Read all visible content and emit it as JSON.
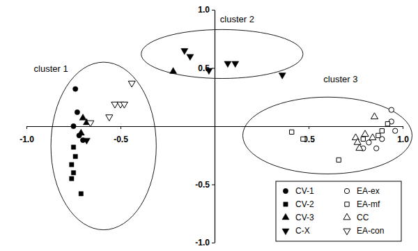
{
  "chart_data": {
    "type": "scatter",
    "xlim": [
      -1,
      1
    ],
    "ylim": [
      -1,
      1
    ],
    "xticks": [
      {
        "value": -1,
        "label": "-1.0"
      },
      -0.5,
      0.5,
      {
        "value": 1,
        "label": "1.0"
      }
    ],
    "yticks": [
      {
        "value": -1,
        "label": "-1.0"
      },
      -0.5,
      0.5,
      {
        "value": 1,
        "label": "1.0"
      }
    ],
    "legend": "lower right",
    "series": [
      {
        "name": "CV-1",
        "color": "#000000",
        "marker": "circle",
        "x": [
          -0.74,
          -0.73,
          -0.75,
          -0.72,
          -0.7
        ],
        "values": [
          0.32,
          0.12,
          0.0,
          -0.08,
          -0.12
        ]
      },
      {
        "name": "CV-2",
        "color": "#000000",
        "marker": "square",
        "x": [
          -0.75,
          -0.74,
          -0.76,
          -0.75,
          -0.76,
          -0.71
        ],
        "values": [
          -0.18,
          -0.26,
          -0.33,
          -0.4,
          -0.45,
          -0.58
        ]
      },
      {
        "name": "CV-3",
        "color": "#000000",
        "marker": "triangle-up",
        "x": [
          -0.7,
          -0.68,
          -0.71,
          -0.22
        ],
        "values": [
          0.07,
          0.03,
          -0.06,
          0.47
        ]
      },
      {
        "name": "C-X",
        "color": "#000000",
        "marker": "triangle-down",
        "x": [
          -0.16,
          -0.13,
          -0.03,
          0.07,
          0.11,
          0.36,
          -0.68
        ],
        "values": [
          0.65,
          0.6,
          0.48,
          0.54,
          0.54,
          0.44,
          -0.12
        ]
      },
      {
        "name": "EA-ex",
        "color": "#000000",
        "marker": "circle-open",
        "x": [
          0.94,
          0.94,
          0.96,
          0.89,
          0.86,
          0.79,
          0.82
        ],
        "values": [
          0.14,
          0.04,
          -0.04,
          -0.11,
          -0.19,
          -0.19,
          -0.14
        ]
      },
      {
        "name": "EA-mf",
        "color": "#000000",
        "marker": "square-open",
        "x": [
          0.41,
          0.47,
          0.66,
          0.89,
          0.92,
          0.87,
          0.79
        ],
        "values": [
          -0.05,
          -0.11,
          -0.29,
          -0.04,
          0.02,
          -0.08,
          -0.11
        ]
      },
      {
        "name": "CC",
        "color": "#000000",
        "marker": "triangle-up-open",
        "x": [
          0.85,
          0.75,
          0.76,
          0.8,
          0.84,
          0.77
        ],
        "values": [
          0.08,
          -0.1,
          -0.14,
          -0.07,
          -0.1,
          -0.19
        ]
      },
      {
        "name": "EA-con",
        "color": "#000000",
        "marker": "triangle-down-open",
        "x": [
          -0.44,
          -0.53,
          -0.5,
          -0.48,
          -0.56,
          -0.66
        ],
        "values": [
          0.37,
          0.19,
          0.19,
          0.19,
          0.08,
          0.03
        ]
      }
    ],
    "annotations": [
      {
        "text": "cluster 1",
        "x": -0.87,
        "y": 0.47,
        "ellipse": {
          "cx": -0.59,
          "cy": -0.17,
          "rx": 0.28,
          "ry": 0.72
        }
      },
      {
        "text": "cluster 2",
        "x": 0.12,
        "y": 0.89,
        "ellipse": {
          "cx": 0.04,
          "cy": 0.62,
          "rx": 0.43,
          "ry": 0.21
        }
      },
      {
        "text": "cluster 3",
        "x": 0.67,
        "y": 0.38,
        "ellipse": {
          "cx": 0.6,
          "cy": -0.08,
          "rx": 0.45,
          "ry": 0.33
        }
      }
    ]
  }
}
